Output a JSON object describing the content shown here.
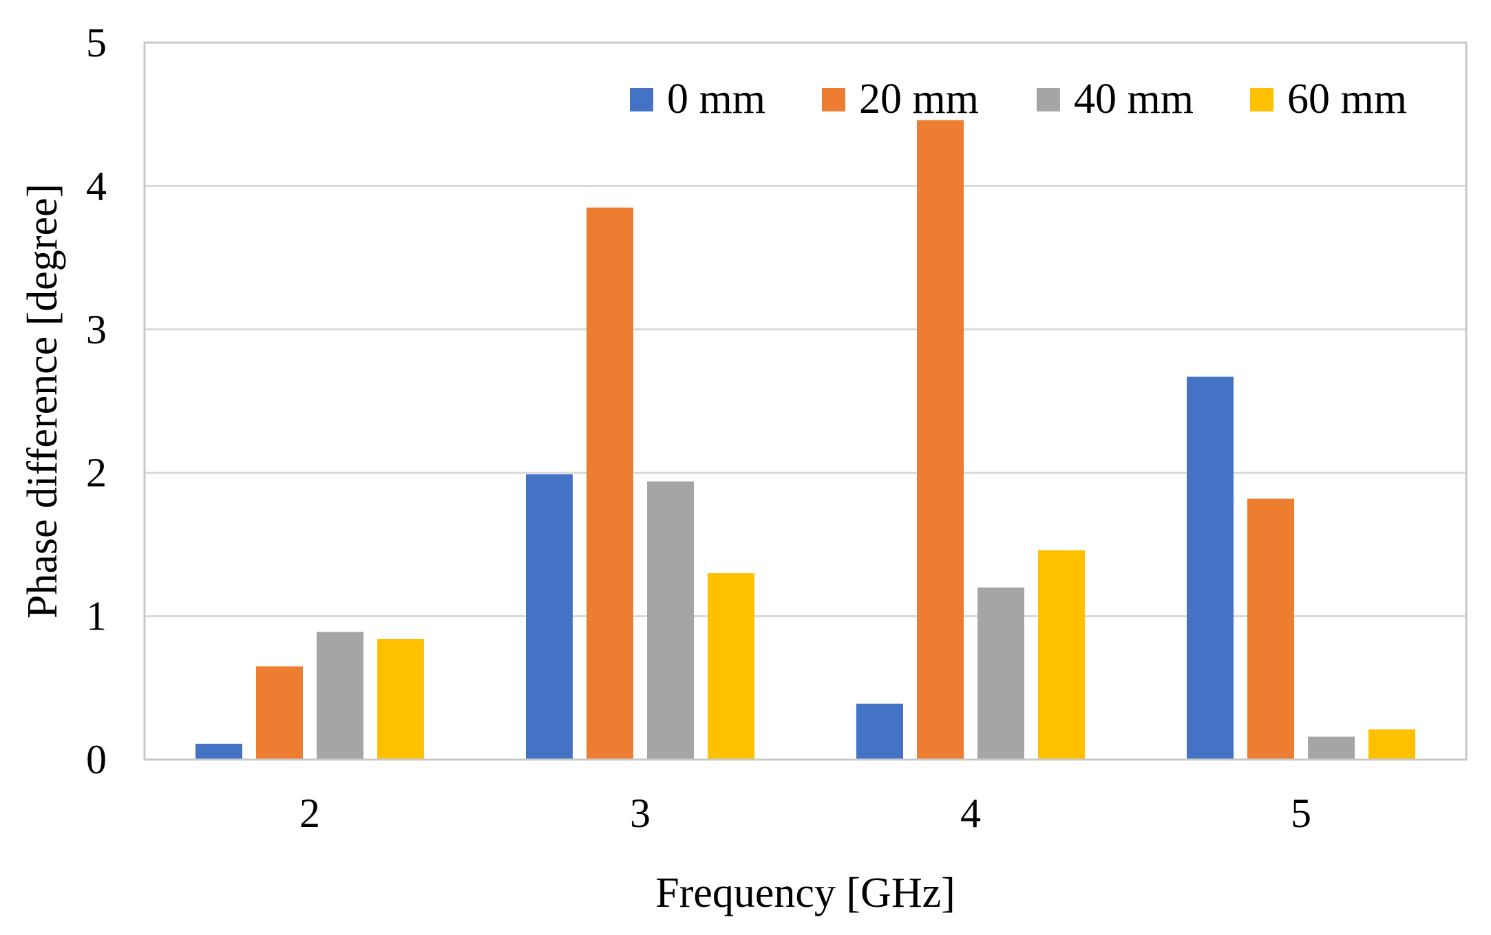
{
  "chart_data": {
    "type": "bar",
    "title": "",
    "xlabel": "Frequency [GHz]",
    "ylabel": "Phase difference [degree]",
    "ylim": [
      0,
      5
    ],
    "yticks": [
      "0",
      "1",
      "2",
      "3",
      "4",
      "5"
    ],
    "categories": [
      "2",
      "3",
      "4",
      "5"
    ],
    "grid": true,
    "legend_position": "top-right",
    "series": [
      {
        "name": "0 mm",
        "color": "#4472C4",
        "values": [
          0.11,
          1.99,
          0.39,
          2.67
        ]
      },
      {
        "name": "20 mm",
        "color": "#ED7D31",
        "values": [
          0.65,
          3.85,
          4.46,
          1.82
        ]
      },
      {
        "name": "40 mm",
        "color": "#A5A5A5",
        "values": [
          0.89,
          1.94,
          1.2,
          0.16
        ]
      },
      {
        "name": "60 mm",
        "color": "#FFC000",
        "values": [
          0.84,
          1.3,
          1.46,
          0.21
        ]
      }
    ]
  }
}
